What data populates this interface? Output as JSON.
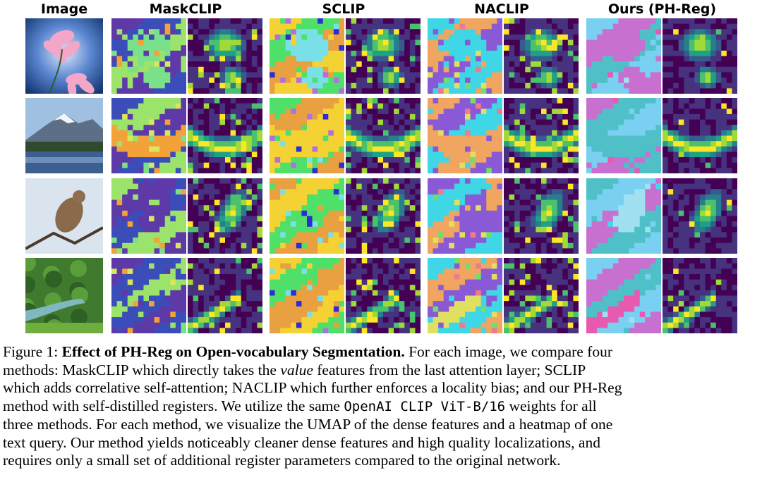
{
  "headers": {
    "image": "Image",
    "maskclip": "MaskCLIP",
    "sclip": "SCLIP",
    "naclip": "NACLIP",
    "ours": "Ours (PH-Reg)"
  },
  "rows": [
    {
      "subject": "flower"
    },
    {
      "subject": "mountain-lake"
    },
    {
      "subject": "bird"
    },
    {
      "subject": "forest-valley"
    }
  ],
  "caption": {
    "figure_label": "Figure 1:",
    "title": "Effect of PH-Reg on Open-vocabulary Segmentation.",
    "l1_tail": "For each image, we compare four",
    "l2_a": "methods: MaskCLIP which directly takes the",
    "l2_italic": "value",
    "l2_b": "features from the last attention layer; SCLIP",
    "l3": "which adds correlative self-attention; NACLIP which further enforces a locality bias; and our PH-Reg",
    "l4": "method with self-distilled registers. We utilize the same",
    "l4_mono": "OpenAI CLIP ViT-B/16",
    "l4_tail": "weights for all",
    "l5": "three methods. For each method, we visualize the UMAP of the dense features and a heatmap of one",
    "l6": "text query. Our method yields noticeably cleaner dense features and high quality localizations, and",
    "l7": "requires only a small set of additional register parameters compared to the original network."
  },
  "colors": {
    "viridis_dark": "#3b1f6e",
    "viridis_mid": "#2c7f8c",
    "viridis_bright": "#c9e04a"
  }
}
